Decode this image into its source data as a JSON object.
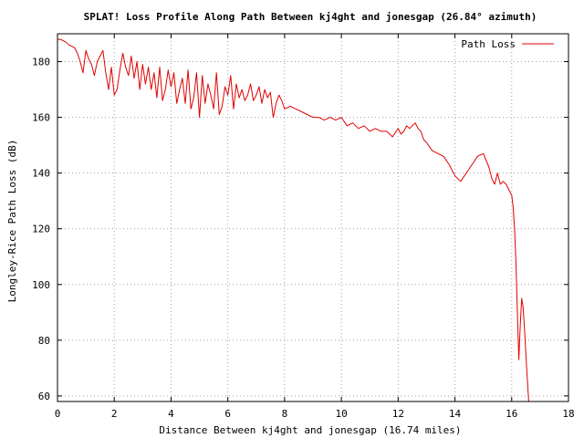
{
  "chart_data": {
    "type": "line",
    "title": "SPLAT! Loss Profile Along Path Between kj4ght and jonesgap (26.84° azimuth)",
    "xlabel": "Distance Between kj4ght and jonesgap (16.74 miles)",
    "ylabel": "Longley-Rice Path Loss (dB)",
    "xlim": [
      0,
      18
    ],
    "ylim": [
      58,
      190
    ],
    "xticks": [
      0,
      2,
      4,
      6,
      8,
      10,
      12,
      14,
      16,
      18
    ],
    "yticks": [
      60,
      80,
      100,
      120,
      140,
      160,
      180
    ],
    "grid": true,
    "legend_position": "top-right",
    "colors": {
      "series": "#e00000",
      "grid": "#a0a0a0",
      "frame": "#000000"
    },
    "series": [
      {
        "name": "Path Loss",
        "x": [
          0.0,
          0.1,
          0.2,
          0.3,
          0.4,
          0.5,
          0.6,
          0.7,
          0.8,
          0.9,
          1.0,
          1.1,
          1.2,
          1.3,
          1.4,
          1.5,
          1.6,
          1.7,
          1.8,
          1.9,
          2.0,
          2.1,
          2.2,
          2.3,
          2.4,
          2.5,
          2.6,
          2.7,
          2.8,
          2.9,
          3.0,
          3.1,
          3.2,
          3.3,
          3.4,
          3.5,
          3.6,
          3.7,
          3.8,
          3.9,
          4.0,
          4.1,
          4.2,
          4.3,
          4.4,
          4.5,
          4.6,
          4.7,
          4.8,
          4.9,
          5.0,
          5.1,
          5.2,
          5.3,
          5.4,
          5.5,
          5.6,
          5.7,
          5.8,
          5.9,
          6.0,
          6.1,
          6.2,
          6.3,
          6.4,
          6.5,
          6.6,
          6.7,
          6.8,
          6.9,
          7.0,
          7.1,
          7.2,
          7.3,
          7.4,
          7.5,
          7.6,
          7.7,
          7.8,
          7.9,
          8.0,
          8.2,
          8.4,
          8.6,
          8.8,
          9.0,
          9.2,
          9.4,
          9.6,
          9.8,
          10.0,
          10.2,
          10.4,
          10.6,
          10.8,
          11.0,
          11.2,
          11.4,
          11.6,
          11.8,
          12.0,
          12.1,
          12.2,
          12.3,
          12.4,
          12.5,
          12.6,
          12.7,
          12.8,
          12.9,
          13.0,
          13.2,
          13.4,
          13.6,
          13.8,
          14.0,
          14.2,
          14.4,
          14.6,
          14.8,
          15.0,
          15.2,
          15.3,
          15.4,
          15.5,
          15.6,
          15.7,
          15.8,
          15.9,
          16.0,
          16.05,
          16.1,
          16.15,
          16.2,
          16.25,
          16.3,
          16.35,
          16.4,
          16.45,
          16.5,
          16.55,
          16.6
        ],
        "values": [
          188,
          188,
          187.5,
          187,
          186,
          185.5,
          185,
          183,
          180,
          176,
          184,
          181,
          179,
          175,
          180,
          182,
          184,
          176,
          170,
          178,
          168,
          170,
          177,
          183,
          178,
          175,
          182,
          174,
          180,
          170,
          179,
          172,
          178,
          170,
          176,
          167,
          178,
          166,
          170,
          177,
          171,
          176,
          165,
          170,
          174,
          165,
          177,
          163,
          167,
          176,
          160,
          175,
          165,
          172,
          168,
          163,
          176,
          161,
          164,
          171,
          168,
          175,
          163,
          172,
          167,
          170,
          166,
          168,
          172,
          166,
          168,
          171,
          165,
          170,
          167,
          169,
          160,
          165,
          168,
          166,
          163,
          164,
          163,
          162,
          161,
          160,
          160,
          159,
          160,
          159,
          160,
          157,
          158,
          156,
          157,
          155,
          156,
          155,
          155,
          153,
          156,
          154,
          155,
          157,
          156,
          157,
          158,
          156,
          155,
          152,
          151,
          148,
          147,
          146,
          143,
          139,
          137,
          140,
          143,
          146,
          147,
          142,
          138,
          136,
          140,
          136,
          137,
          136,
          134,
          132,
          128,
          120,
          108,
          90,
          73,
          85,
          95,
          92,
          84,
          75,
          66,
          58
        ]
      }
    ]
  }
}
